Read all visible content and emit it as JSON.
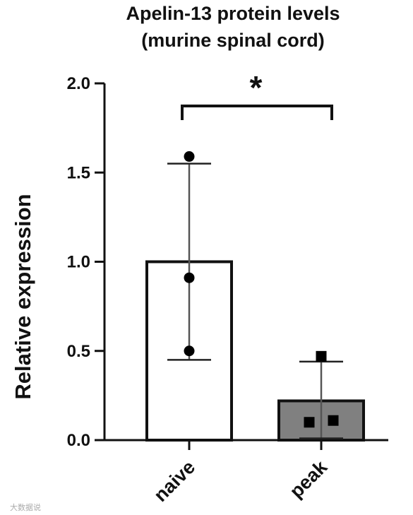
{
  "chart_data": {
    "type": "bar",
    "title_lines": [
      "Apelin-13 protein levels",
      "(murine spinal cord)"
    ],
    "ylabel": "Relative expression",
    "xlabel": "",
    "ylim": [
      0,
      2.0
    ],
    "yticks": [
      0.0,
      0.5,
      1.0,
      1.5,
      2.0
    ],
    "ytick_labels": [
      "0.0",
      "0.5",
      "1.0",
      "1.5",
      "2.0"
    ],
    "grid": false,
    "categories": [
      "naive",
      "peak"
    ],
    "bars": [
      {
        "category": "naive",
        "mean": 1.0,
        "error_low": 0.45,
        "error_high": 1.55,
        "points": [
          1.59,
          0.91,
          0.5
        ],
        "fill": "#ffffff",
        "marker": "circle"
      },
      {
        "category": "peak",
        "mean": 0.22,
        "error_low": 0.01,
        "error_high": 0.44,
        "points": [
          0.47,
          0.1,
          0.11
        ],
        "fill": "#808080",
        "marker": "square"
      }
    ],
    "significance": {
      "label": "*",
      "between": [
        "naive",
        "peak"
      ]
    }
  },
  "watermark": "大数据说"
}
